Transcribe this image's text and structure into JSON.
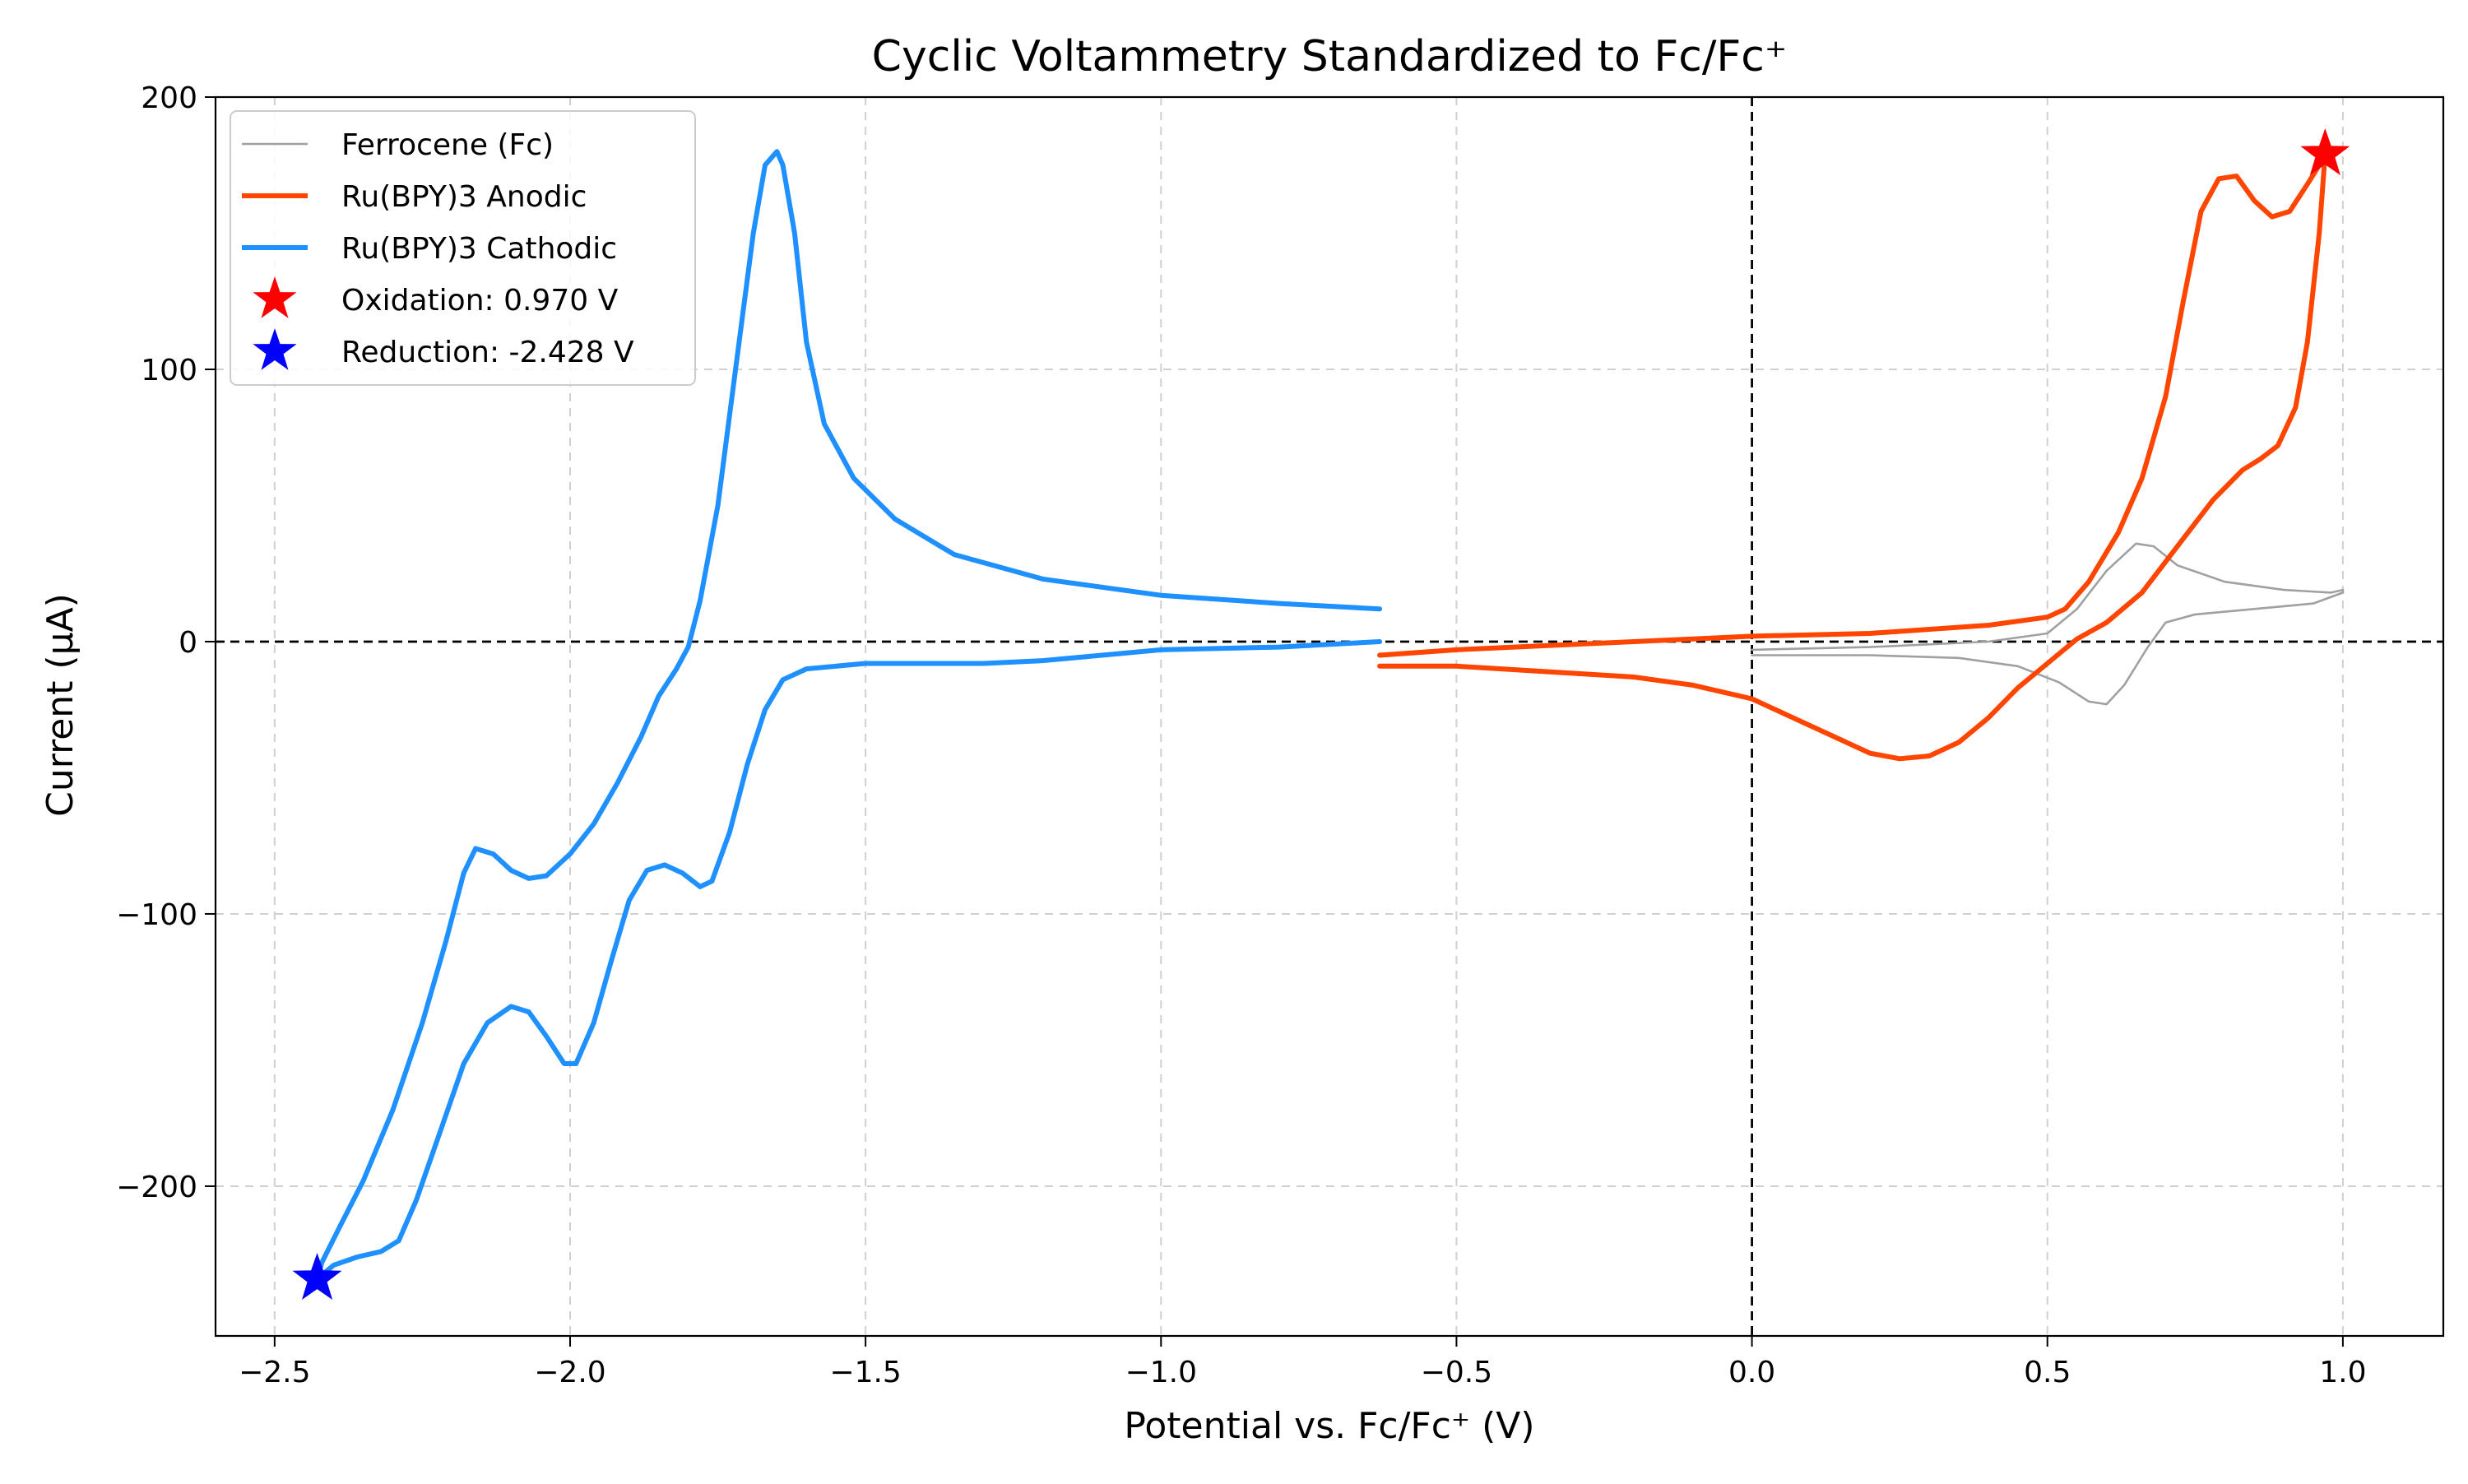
{
  "chart_data": {
    "type": "line",
    "title": "Cyclic Voltammetry Standardized to Fc/Fc⁺",
    "xlabel": "Potential vs. Fc/Fc⁺ (V)",
    "ylabel": "Current (μA)",
    "xlim": [
      -2.6,
      1.17
    ],
    "ylim": [
      -255,
      200
    ],
    "xticks": [
      -2.5,
      -2.0,
      -1.5,
      -1.0,
      -0.5,
      0.0,
      0.5,
      1.0
    ],
    "xtick_labels": [
      "−2.5",
      "−2.0",
      "−1.5",
      "−1.0",
      "−0.5",
      "0.0",
      "0.5",
      "1.0"
    ],
    "yticks": [
      200,
      100,
      0,
      -100,
      -200
    ],
    "ytick_labels": [
      "200",
      "100",
      "0",
      "−100",
      "−200"
    ],
    "grid": true,
    "legend_position": "top-left",
    "reference_lines": {
      "x": 0,
      "y": 0
    },
    "series": [
      {
        "name": "Ferrocene (Fc)",
        "color": "#a0a0a0",
        "style": "thin",
        "points": [
          [
            0.0,
            -3
          ],
          [
            0.2,
            -2
          ],
          [
            0.4,
            0
          ],
          [
            0.5,
            3
          ],
          [
            0.55,
            12
          ],
          [
            0.6,
            26
          ],
          [
            0.65,
            36
          ],
          [
            0.68,
            35
          ],
          [
            0.72,
            28
          ],
          [
            0.8,
            22
          ],
          [
            0.9,
            19
          ],
          [
            0.98,
            18
          ],
          [
            1.0,
            19
          ],
          [
            1.0,
            18
          ],
          [
            0.95,
            14
          ],
          [
            0.85,
            12
          ],
          [
            0.75,
            10
          ],
          [
            0.7,
            7
          ],
          [
            0.67,
            -2
          ],
          [
            0.63,
            -16
          ],
          [
            0.6,
            -23
          ],
          [
            0.57,
            -22
          ],
          [
            0.52,
            -15
          ],
          [
            0.45,
            -9
          ],
          [
            0.35,
            -6
          ],
          [
            0.2,
            -5
          ],
          [
            0.0,
            -5
          ]
        ]
      },
      {
        "name": "Ru(BPY)3 Anodic",
        "color": "#ff4500",
        "style": "thick",
        "points": [
          [
            -0.63,
            -5
          ],
          [
            -0.5,
            -3
          ],
          [
            -0.3,
            -1
          ],
          [
            -0.1,
            1
          ],
          [
            0.0,
            2
          ],
          [
            0.2,
            3
          ],
          [
            0.4,
            6
          ],
          [
            0.5,
            9
          ],
          [
            0.53,
            12
          ],
          [
            0.57,
            22
          ],
          [
            0.62,
            40
          ],
          [
            0.66,
            60
          ],
          [
            0.7,
            90
          ],
          [
            0.73,
            125
          ],
          [
            0.76,
            158
          ],
          [
            0.79,
            170
          ],
          [
            0.82,
            171
          ],
          [
            0.85,
            162
          ],
          [
            0.88,
            156
          ],
          [
            0.91,
            158
          ],
          [
            0.94,
            168
          ],
          [
            0.96,
            175
          ],
          [
            0.97,
            179
          ],
          [
            0.96,
            150
          ],
          [
            0.94,
            110
          ],
          [
            0.92,
            86
          ],
          [
            0.89,
            72
          ],
          [
            0.86,
            67
          ],
          [
            0.83,
            63
          ],
          [
            0.78,
            52
          ],
          [
            0.72,
            35
          ],
          [
            0.66,
            18
          ],
          [
            0.6,
            7
          ],
          [
            0.55,
            1
          ],
          [
            0.5,
            -8
          ],
          [
            0.45,
            -17
          ],
          [
            0.4,
            -28
          ],
          [
            0.35,
            -37
          ],
          [
            0.3,
            -42
          ],
          [
            0.25,
            -43
          ],
          [
            0.2,
            -41
          ],
          [
            0.15,
            -36
          ],
          [
            0.1,
            -31
          ],
          [
            0.0,
            -21
          ],
          [
            -0.1,
            -16
          ],
          [
            -0.2,
            -13
          ],
          [
            -0.35,
            -11
          ],
          [
            -0.5,
            -9
          ],
          [
            -0.63,
            -9
          ]
        ]
      },
      {
        "name": "Ru(BPY)3 Cathodic",
        "color": "#1e90ff",
        "style": "thick",
        "points": [
          [
            -0.63,
            12
          ],
          [
            -0.8,
            14
          ],
          [
            -1.0,
            17
          ],
          [
            -1.2,
            23
          ],
          [
            -1.35,
            32
          ],
          [
            -1.45,
            45
          ],
          [
            -1.52,
            60
          ],
          [
            -1.57,
            80
          ],
          [
            -1.6,
            110
          ],
          [
            -1.62,
            150
          ],
          [
            -1.64,
            175
          ],
          [
            -1.65,
            180
          ],
          [
            -1.67,
            175
          ],
          [
            -1.69,
            150
          ],
          [
            -1.72,
            100
          ],
          [
            -1.75,
            50
          ],
          [
            -1.78,
            15
          ],
          [
            -1.8,
            -2
          ],
          [
            -1.82,
            -10
          ],
          [
            -1.85,
            -20
          ],
          [
            -1.88,
            -35
          ],
          [
            -1.92,
            -52
          ],
          [
            -1.96,
            -67
          ],
          [
            -2.0,
            -78
          ],
          [
            -2.04,
            -86
          ],
          [
            -2.07,
            -87
          ],
          [
            -2.1,
            -84
          ],
          [
            -2.13,
            -78
          ],
          [
            -2.16,
            -76
          ],
          [
            -2.18,
            -85
          ],
          [
            -2.21,
            -110
          ],
          [
            -2.25,
            -140
          ],
          [
            -2.3,
            -172
          ],
          [
            -2.35,
            -198
          ],
          [
            -2.39,
            -215
          ],
          [
            -2.42,
            -228
          ],
          [
            -2.428,
            -234
          ],
          [
            -2.4,
            -229
          ],
          [
            -2.36,
            -226
          ],
          [
            -2.32,
            -224
          ],
          [
            -2.29,
            -220
          ],
          [
            -2.26,
            -205
          ],
          [
            -2.22,
            -180
          ],
          [
            -2.18,
            -155
          ],
          [
            -2.14,
            -140
          ],
          [
            -2.1,
            -134
          ],
          [
            -2.07,
            -136
          ],
          [
            -2.04,
            -145
          ],
          [
            -2.01,
            -155
          ],
          [
            -1.99,
            -155
          ],
          [
            -1.96,
            -140
          ],
          [
            -1.93,
            -117
          ],
          [
            -1.9,
            -95
          ],
          [
            -1.87,
            -84
          ],
          [
            -1.84,
            -82
          ],
          [
            -1.81,
            -85
          ],
          [
            -1.78,
            -90
          ],
          [
            -1.76,
            -88
          ],
          [
            -1.73,
            -70
          ],
          [
            -1.7,
            -45
          ],
          [
            -1.67,
            -25
          ],
          [
            -1.64,
            -14
          ],
          [
            -1.6,
            -10
          ],
          [
            -1.5,
            -8
          ],
          [
            -1.3,
            -8
          ],
          [
            -1.2,
            -7
          ],
          [
            -1.1,
            -5
          ],
          [
            -1.0,
            -3
          ],
          [
            -0.8,
            -2
          ],
          [
            -0.63,
            0
          ]
        ]
      }
    ],
    "markers": [
      {
        "name": "Oxidation: 0.970 V",
        "x": 0.97,
        "y": 179,
        "color": "#ff0000",
        "shape": "star"
      },
      {
        "name": "Reduction: -2.428 V",
        "x": -2.428,
        "y": -234,
        "color": "#0000ff",
        "shape": "star"
      }
    ]
  }
}
